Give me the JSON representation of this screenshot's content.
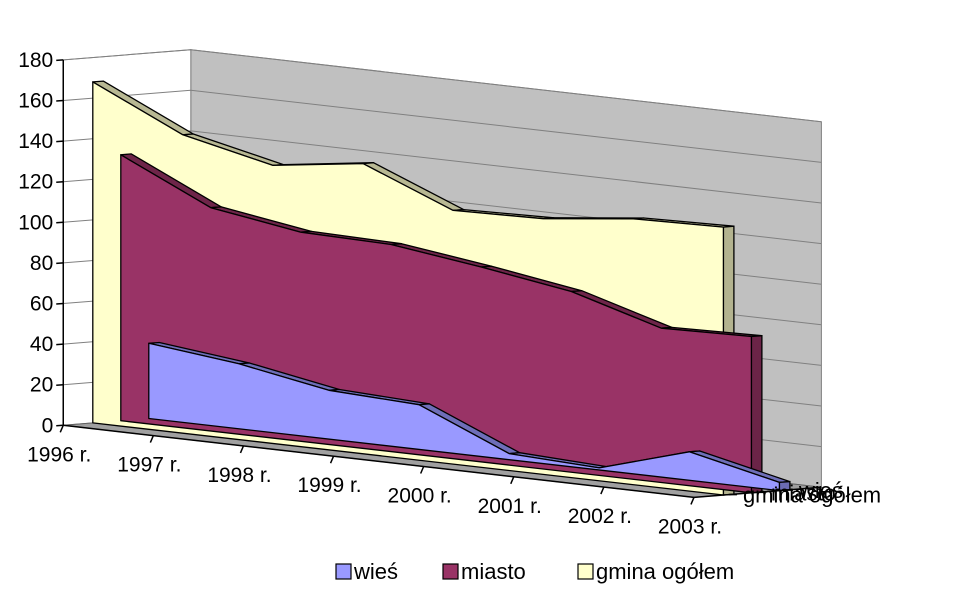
{
  "chart_data": {
    "type": "area",
    "categories": [
      "1996 r.",
      "1997 r.",
      "1998 r.",
      "1999 r.",
      "2000 r.",
      "2001 r.",
      "2002 r.",
      "2003 r."
    ],
    "series": [
      {
        "name": "wieś",
        "values": [
          37,
          32,
          24,
          22,
          3,
          1,
          14,
          4
        ],
        "color": "#9999ff"
      },
      {
        "name": "miasto",
        "values": [
          131,
          110,
          103,
          102,
          96,
          89,
          76,
          77
        ],
        "color": "#993366"
      },
      {
        "name": "gmina ogółem",
        "values": [
          168,
          147,
          137,
          143,
          125,
          126,
          131,
          132
        ],
        "color": "#ffffcc"
      }
    ],
    "y_ticks": [
      "0",
      "20",
      "40",
      "60",
      "80",
      "100",
      "120",
      "140",
      "160",
      "180"
    ],
    "ylim": [
      0,
      180
    ],
    "grid": true,
    "legend_position": "bottom",
    "projection": "3d"
  }
}
